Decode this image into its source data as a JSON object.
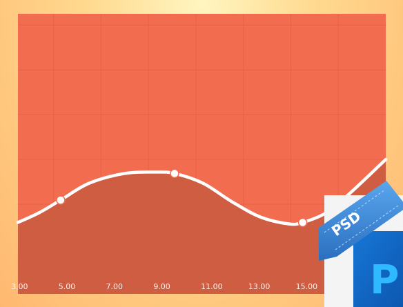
{
  "chart_data": {
    "type": "area",
    "x_ticks": [
      "3.00",
      "5.00",
      "7.00",
      "9.00",
      "11.00",
      "13.00",
      "15.00"
    ],
    "xlim": [
      3,
      18.5
    ],
    "ylim": [
      0,
      10
    ],
    "grid": true,
    "x": [
      3.0,
      3.9,
      4.8,
      6.0,
      7.5,
      8.8,
      9.6,
      10.8,
      12.0,
      13.2,
      14.4,
      15.0,
      16.0,
      17.0,
      18.5
    ],
    "values": [
      2.55,
      2.9,
      3.35,
      3.95,
      4.3,
      4.35,
      4.3,
      3.95,
      3.3,
      2.75,
      2.5,
      2.55,
      2.9,
      3.6,
      4.8
    ],
    "markers": [
      {
        "x": 4.8,
        "y": 3.35
      },
      {
        "x": 9.6,
        "y": 4.3
      },
      {
        "x": 15.0,
        "y": 2.55
      }
    ],
    "colors": {
      "plot_bg": "#f26d4f",
      "area_fill": "#cf5d42",
      "grid": "#e6624a",
      "line": "#ffffff"
    }
  },
  "badge": {
    "ribbon_label": "PSD",
    "app_letter": "P",
    "app_icon": "photoshop-icon",
    "colors": {
      "ribbon": "#3b8ad6",
      "tile": "#0f63c4",
      "letter": "#2fb9ff"
    }
  }
}
